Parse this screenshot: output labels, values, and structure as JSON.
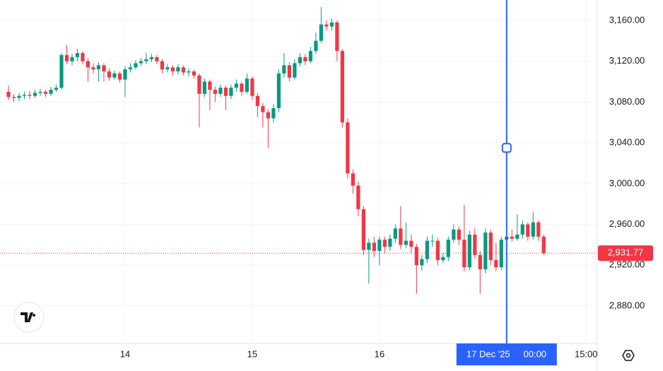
{
  "chart_data": {
    "type": "candlestick",
    "x": [
      -22,
      -21,
      -20,
      -19,
      -18,
      -17,
      -16,
      -15,
      -14,
      -13,
      -12,
      -11,
      -10,
      -9,
      -8,
      -7,
      -6,
      -5,
      -4,
      -3,
      -2,
      -1,
      0,
      1,
      2,
      3,
      4,
      5,
      6,
      7,
      8,
      9,
      10,
      11,
      12,
      13,
      14,
      15,
      16,
      17,
      18,
      19,
      20,
      21,
      22,
      23,
      24,
      25,
      26,
      27,
      28,
      29,
      30,
      31,
      32,
      33,
      34,
      35,
      36,
      37,
      38,
      39,
      40,
      41,
      42,
      43,
      44,
      45,
      46,
      47,
      48,
      49,
      50,
      51,
      52,
      53,
      54,
      55,
      56,
      57,
      58,
      59,
      60,
      61,
      62,
      63,
      64,
      65,
      66,
      67,
      68,
      69,
      70,
      71,
      72,
      73,
      74,
      75,
      76,
      77,
      78,
      79
    ],
    "open": [
      3090,
      3085,
      3084,
      3086,
      3087,
      3086,
      3089,
      3090,
      3088,
      3092,
      3094,
      3126,
      3120,
      3124,
      3128,
      3120,
      3114,
      3112,
      3116,
      3110,
      3104,
      3108,
      3102,
      3112,
      3114,
      3118,
      3120,
      3122,
      3124,
      3120,
      3112,
      3114,
      3110,
      3114,
      3109,
      3110,
      3106,
      3088,
      3100,
      3092,
      3088,
      3094,
      3086,
      3094,
      3098,
      3090,
      3103,
      3086,
      3076,
      3070,
      3064,
      3074,
      3108,
      3116,
      3104,
      3118,
      3124,
      3120,
      3130,
      3140,
      3156,
      3154,
      3158,
      3130,
      3060,
      3010,
      2998,
      2975,
      2935,
      2942,
      2934,
      2945,
      2938,
      2946,
      2956,
      2940,
      2944,
      2938,
      2920,
      2926,
      2944,
      2944,
      2925,
      2928,
      2945,
      2955,
      2945,
      2918,
      2950,
      2930,
      2916,
      2952,
      2925,
      2918,
      2945,
      2948,
      2946,
      2950,
      2960,
      2948,
      2962,
      2948
    ],
    "high": [
      3096,
      3088,
      3089,
      3090,
      3091,
      3092,
      3093,
      3092,
      3095,
      3097,
      3128,
      3136,
      3127,
      3132,
      3130,
      3123,
      3118,
      3119,
      3118,
      3113,
      3111,
      3110,
      3115,
      3118,
      3121,
      3123,
      3128,
      3127,
      3126,
      3122,
      3117,
      3116,
      3117,
      3116,
      3113,
      3112,
      3108,
      3103,
      3102,
      3095,
      3097,
      3096,
      3097,
      3102,
      3100,
      3108,
      3105,
      3089,
      3079,
      3073,
      3078,
      3112,
      3128,
      3119,
      3122,
      3128,
      3127,
      3134,
      3148,
      3173,
      3160,
      3162,
      3160,
      3132,
      3064,
      3014,
      3002,
      2978,
      2946,
      2948,
      2948,
      2948,
      2950,
      2960,
      2978,
      2962,
      2950,
      2941,
      2930,
      2948,
      2950,
      2947,
      2932,
      2948,
      2960,
      2958,
      2979,
      2954,
      2956,
      2934,
      2956,
      2955,
      2942,
      2948,
      2952,
      2955,
      2970,
      2964,
      2962,
      2972,
      2964,
      2950
    ],
    "low": [
      3082,
      3080,
      3081,
      3083,
      3083,
      3084,
      3086,
      3085,
      3086,
      3090,
      3092,
      3117,
      3116,
      3120,
      3117,
      3100,
      3108,
      3100,
      3100,
      3101,
      3102,
      3099,
      3085,
      3109,
      3112,
      3115,
      3117,
      3119,
      3117,
      3108,
      3109,
      3106,
      3107,
      3106,
      3105,
      3103,
      3055,
      3085,
      3072,
      3080,
      3085,
      3072,
      3083,
      3090,
      3086,
      3088,
      3082,
      3065,
      3055,
      3035,
      3060,
      3070,
      3104,
      3100,
      3102,
      3115,
      3116,
      3118,
      3127,
      3138,
      3150,
      3150,
      3120,
      3055,
      3005,
      2990,
      2968,
      2930,
      2902,
      2928,
      2920,
      2932,
      2934,
      2942,
      2936,
      2937,
      2932,
      2892,
      2915,
      2922,
      2938,
      2920,
      2922,
      2924,
      2942,
      2940,
      2914,
      2915,
      2926,
      2892,
      2912,
      2920,
      2914,
      2915,
      2942,
      2943,
      2944,
      2946,
      2944,
      2945,
      2944,
      2930
    ],
    "close": [
      3085,
      3084,
      3086,
      3087,
      3086,
      3089,
      3090,
      3088,
      3092,
      3094,
      3126,
      3120,
      3124,
      3128,
      3120,
      3114,
      3112,
      3116,
      3110,
      3104,
      3108,
      3102,
      3112,
      3114,
      3118,
      3120,
      3122,
      3124,
      3120,
      3112,
      3114,
      3110,
      3114,
      3109,
      3110,
      3106,
      3088,
      3100,
      3092,
      3088,
      3094,
      3086,
      3094,
      3098,
      3090,
      3103,
      3086,
      3076,
      3070,
      3064,
      3074,
      3108,
      3116,
      3104,
      3118,
      3124,
      3120,
      3130,
      3140,
      3156,
      3154,
      3158,
      3130,
      3060,
      3010,
      2998,
      2975,
      2935,
      2942,
      2934,
      2945,
      2938,
      2946,
      2956,
      2940,
      2944,
      2938,
      2920,
      2926,
      2944,
      2944,
      2925,
      2928,
      2945,
      2955,
      2945,
      2918,
      2950,
      2930,
      2916,
      2952,
      2925,
      2918,
      2945,
      2948,
      2946,
      2950,
      2960,
      2948,
      2962,
      2948,
      2931.77
    ],
    "up_color": "#089981",
    "down_color": "#f23645",
    "xlim": [
      -23.6,
      89.1
    ],
    "xticks": [
      {
        "value": 0,
        "label": "14"
      },
      {
        "value": 24,
        "label": "15"
      },
      {
        "value": 48,
        "label": "16"
      },
      {
        "value": 87,
        "label": "15:00"
      }
    ],
    "ylim": [
      2844,
      3180
    ],
    "yticks": [
      {
        "value": 2880,
        "label": "2,880.00"
      },
      {
        "value": 2920,
        "label": "2,920.00"
      },
      {
        "value": 2960,
        "label": "2,960.00"
      },
      {
        "value": 3000,
        "label": "3,000.00"
      },
      {
        "value": 3040,
        "label": "3,040.00"
      },
      {
        "value": 3080,
        "label": "3,080.00"
      },
      {
        "value": 3120,
        "label": "3,120.00"
      },
      {
        "value": 3160,
        "label": "3,160.00"
      }
    ],
    "grid": true,
    "last_price": {
      "value": 2931.77,
      "label": "2,931.77"
    },
    "crosshair": {
      "x": 72,
      "y": 3035,
      "date_label": "17 Dec '25",
      "time_label": "00:00",
      "color": "#2962ff"
    }
  }
}
